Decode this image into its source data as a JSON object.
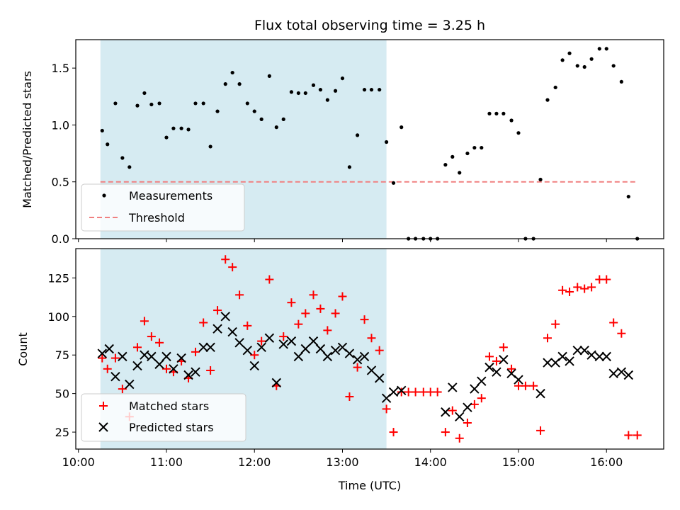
{
  "colors": {
    "shade": "#add8e6",
    "threshold": "#f08080",
    "measurements": "#000000",
    "matched": "#ff0000",
    "predicted": "#000000"
  },
  "chart_data": [
    {
      "type": "scatter",
      "title": "Flux total observing time = 3.25 h",
      "ylabel": "Matched/Predicted stars",
      "xlabel": "",
      "x_unit": "hours (UTC)",
      "xlim": [
        9.97,
        16.65
      ],
      "ylim": [
        0,
        1.75
      ],
      "yticks": [
        0.0,
        0.5,
        1.0,
        1.5
      ],
      "ytick_labels": [
        "0.0",
        "0.5",
        "1.0",
        "1.5"
      ],
      "xticks": [
        10,
        11,
        12,
        13,
        14,
        15,
        16
      ],
      "shaded_span": [
        10.25,
        13.5
      ],
      "threshold": {
        "name": "Threshold",
        "value": 0.5,
        "x_range": [
          10.25,
          16.35
        ]
      },
      "legend": {
        "placement": "lower-left",
        "entries": [
          "Measurements",
          "Threshold"
        ]
      },
      "series": [
        {
          "name": "Measurements",
          "marker": "dot",
          "x": [
            10.27,
            10.33,
            10.42,
            10.5,
            10.58,
            10.67,
            10.75,
            10.83,
            10.92,
            11.0,
            11.08,
            11.17,
            11.25,
            11.33,
            11.42,
            11.5,
            11.58,
            11.67,
            11.75,
            11.83,
            11.92,
            12.0,
            12.08,
            12.17,
            12.25,
            12.33,
            12.42,
            12.5,
            12.58,
            12.67,
            12.75,
            12.83,
            12.92,
            13.0,
            13.08,
            13.17,
            13.25,
            13.33,
            13.42,
            13.5,
            13.58,
            13.67,
            13.75,
            13.83,
            13.92,
            14.0,
            14.08,
            14.17,
            14.25,
            14.33,
            14.42,
            14.5,
            14.58,
            14.67,
            14.75,
            14.83,
            14.92,
            15.0,
            15.08,
            15.17,
            15.25,
            15.33,
            15.42,
            15.5,
            15.58,
            15.67,
            15.75,
            15.83,
            15.92,
            16.0,
            16.08,
            16.17,
            16.25,
            16.35
          ],
          "y": [
            0.95,
            0.83,
            1.19,
            0.71,
            0.63,
            1.17,
            1.28,
            1.18,
            1.19,
            0.89,
            0.97,
            0.97,
            0.96,
            1.19,
            1.19,
            0.81,
            1.12,
            1.36,
            1.46,
            1.36,
            1.19,
            1.12,
            1.05,
            1.43,
            0.98,
            1.05,
            1.29,
            1.28,
            1.28,
            1.35,
            1.31,
            1.22,
            1.3,
            1.41,
            0.63,
            0.91,
            1.31,
            1.31,
            1.31,
            0.85,
            0.49,
            0.98,
            0.0,
            0.0,
            0.0,
            0.0,
            0.0,
            0.65,
            0.72,
            0.58,
            0.75,
            0.8,
            0.8,
            1.1,
            1.1,
            1.1,
            1.04,
            0.93,
            0.0,
            0.0,
            0.52,
            1.22,
            1.33,
            1.57,
            1.63,
            1.52,
            1.51,
            1.58,
            1.67,
            1.67,
            1.52,
            1.38,
            0.37,
            0.0
          ]
        }
      ]
    },
    {
      "type": "scatter",
      "title": "",
      "ylabel": "Count",
      "xlabel": "Time (UTC)",
      "x_unit": "hours (UTC)",
      "xlim": [
        9.97,
        16.65
      ],
      "ylim": [
        14,
        144
      ],
      "yticks": [
        25,
        50,
        75,
        100,
        125
      ],
      "ytick_labels": [
        "25",
        "50",
        "75",
        "100",
        "125"
      ],
      "xticks": [
        10,
        11,
        12,
        13,
        14,
        15,
        16
      ],
      "xtick_labels": [
        "10:00",
        "11:00",
        "12:00",
        "13:00",
        "14:00",
        "15:00",
        "16:00"
      ],
      "shaded_span": [
        10.25,
        13.5
      ],
      "legend": {
        "placement": "lower-left",
        "entries": [
          "Matched stars",
          "Predicted stars"
        ]
      },
      "series": [
        {
          "name": "Matched stars",
          "marker": "plus",
          "x": [
            10.27,
            10.33,
            10.42,
            10.5,
            10.58,
            10.67,
            10.75,
            10.83,
            10.92,
            11.0,
            11.08,
            11.17,
            11.25,
            11.33,
            11.42,
            11.5,
            11.58,
            11.67,
            11.75,
            11.83,
            11.92,
            12.0,
            12.08,
            12.17,
            12.25,
            12.33,
            12.42,
            12.5,
            12.58,
            12.67,
            12.75,
            12.83,
            12.92,
            13.0,
            13.08,
            13.17,
            13.25,
            13.33,
            13.42,
            13.5,
            13.58,
            13.67,
            13.75,
            13.83,
            13.92,
            14.0,
            14.08,
            14.17,
            14.25,
            14.33,
            14.42,
            14.5,
            14.58,
            14.67,
            14.75,
            14.83,
            14.92,
            15.0,
            15.08,
            15.17,
            15.25,
            15.33,
            15.42,
            15.5,
            15.58,
            15.67,
            15.75,
            15.83,
            15.92,
            16.0,
            16.08,
            16.17,
            16.25,
            16.35
          ],
          "y": [
            73,
            66,
            73,
            53,
            35,
            80,
            97,
            87,
            83,
            66,
            64,
            71,
            60,
            77,
            96,
            65,
            104,
            137,
            132,
            114,
            94,
            75,
            84,
            124,
            55,
            87,
            109,
            95,
            102,
            114,
            105,
            91,
            102,
            113,
            48,
            67,
            98,
            86,
            78,
            40,
            25,
            51,
            51,
            51,
            51,
            51,
            51,
            25,
            39,
            21,
            31,
            43,
            47,
            74,
            71,
            80,
            66,
            55,
            55,
            55,
            26,
            86,
            95,
            117,
            116,
            119,
            118,
            119,
            124,
            124,
            96,
            89,
            23,
            23
          ]
        },
        {
          "name": "Predicted stars",
          "marker": "x",
          "x": [
            10.27,
            10.35,
            10.42,
            10.5,
            10.58,
            10.67,
            10.75,
            10.83,
            10.92,
            11.0,
            11.08,
            11.17,
            11.25,
            11.33,
            11.42,
            11.5,
            11.58,
            11.67,
            11.75,
            11.83,
            11.92,
            12.0,
            12.08,
            12.17,
            12.25,
            12.33,
            12.42,
            12.5,
            12.58,
            12.67,
            12.75,
            12.83,
            12.92,
            13.0,
            13.08,
            13.17,
            13.25,
            13.33,
            13.42,
            13.5,
            13.58,
            13.67,
            14.17,
            14.25,
            14.33,
            14.42,
            14.5,
            14.58,
            14.67,
            14.75,
            14.83,
            14.92,
            15.0,
            15.25,
            15.33,
            15.42,
            15.5,
            15.58,
            15.67,
            15.75,
            15.83,
            15.92,
            16.0,
            16.08,
            16.17,
            16.25
          ],
          "y": [
            76,
            79,
            61,
            74,
            56,
            68,
            75,
            74,
            69,
            74,
            66,
            73,
            62,
            64,
            80,
            80,
            92,
            100,
            90,
            83,
            78,
            68,
            80,
            86,
            57,
            82,
            84,
            74,
            79,
            84,
            79,
            74,
            78,
            80,
            76,
            72,
            74,
            65,
            60,
            47,
            51,
            52,
            38,
            54,
            35,
            41,
            53,
            58,
            67,
            64,
            72,
            63,
            59,
            50,
            70,
            70,
            74,
            71,
            78,
            78,
            75,
            74,
            74,
            63,
            64,
            62
          ]
        }
      ]
    }
  ]
}
